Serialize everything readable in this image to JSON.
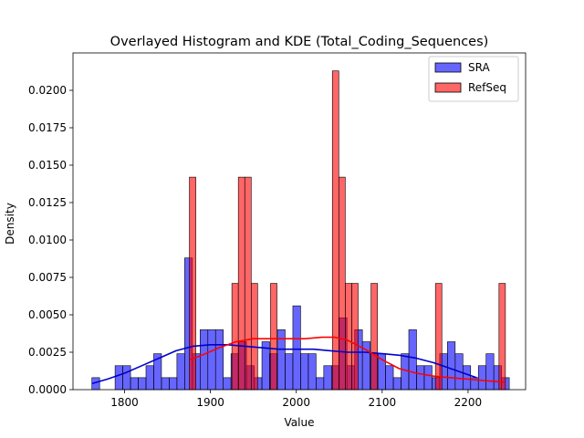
{
  "chart_data": {
    "type": "bar",
    "title": "Overlayed Histogram and KDE (Total_Coding_Sequences)",
    "xlabel": "Value",
    "ylabel": "Density",
    "xlim": [
      1740,
      2267
    ],
    "ylim": [
      0,
      0.0225
    ],
    "xticks": [
      1800,
      1900,
      2000,
      2100,
      2200
    ],
    "yticks": [
      0.0,
      0.0025,
      0.005,
      0.0075,
      0.01,
      0.0125,
      0.015,
      0.0175,
      0.02
    ],
    "ytick_labels": [
      "0.0000",
      "0.0025",
      "0.0050",
      "0.0075",
      "0.0100",
      "0.0125",
      "0.0150",
      "0.0175",
      "0.0200"
    ],
    "grid": false,
    "legend_position": "top-right",
    "series": [
      {
        "name": "SRA",
        "kind": "histogram",
        "color": "#0000ff",
        "bin_start": 1762,
        "bin_width": 9.0,
        "values": [
          0.0008,
          0.0,
          0.0,
          0.0016,
          0.0016,
          0.0008,
          0.0008,
          0.0016,
          0.0024,
          0.0008,
          0.0008,
          0.0024,
          0.0088,
          0.0024,
          0.004,
          0.004,
          0.004,
          0.0008,
          0.0024,
          0.0032,
          0.0016,
          0.0008,
          0.0032,
          0.0024,
          0.004,
          0.0024,
          0.0056,
          0.0024,
          0.0024,
          0.0008,
          0.0016,
          0.0016,
          0.0048,
          0.0016,
          0.004,
          0.0032,
          0.0024,
          0.0024,
          0.0016,
          0.0008,
          0.0024,
          0.004,
          0.0016,
          0.0016,
          0.0008,
          0.0024,
          0.0032,
          0.0024,
          0.0016,
          0.0008,
          0.0016,
          0.0024,
          0.0016,
          0.0008
        ]
      },
      {
        "name": "RefSeq",
        "kind": "histogram",
        "color": "#ff0000",
        "bars": [
          {
            "x0": 1875.5,
            "x1": 1883.0,
            "value": 0.0142
          },
          {
            "x0": 1925.0,
            "x1": 1932.5,
            "value": 0.0071
          },
          {
            "x0": 1932.5,
            "x1": 1940.0,
            "value": 0.0142
          },
          {
            "x0": 1940.0,
            "x1": 1947.5,
            "value": 0.0142
          },
          {
            "x0": 1947.5,
            "x1": 1955.0,
            "value": 0.0071
          },
          {
            "x0": 1970.0,
            "x1": 1977.5,
            "value": 0.0071
          },
          {
            "x0": 2042.0,
            "x1": 2049.5,
            "value": 0.0213
          },
          {
            "x0": 2049.5,
            "x1": 2057.0,
            "value": 0.0142
          },
          {
            "x0": 2057.0,
            "x1": 2064.5,
            "value": 0.0071
          },
          {
            "x0": 2064.5,
            "x1": 2072.0,
            "value": 0.0071
          },
          {
            "x0": 2087.0,
            "x1": 2094.5,
            "value": 0.0071
          },
          {
            "x0": 2162.0,
            "x1": 2169.5,
            "value": 0.0071
          },
          {
            "x0": 2236.0,
            "x1": 2243.5,
            "value": 0.0071
          }
        ]
      }
    ],
    "kde": [
      {
        "name": "SRA",
        "color": "#0000cc",
        "x": [
          1762,
          1780,
          1800,
          1820,
          1840,
          1860,
          1880,
          1900,
          1920,
          1940,
          1960,
          1980,
          2000,
          2020,
          2040,
          2060,
          2080,
          2100,
          2120,
          2140,
          2160,
          2180,
          2200,
          2210
        ],
        "y": [
          0.0004,
          0.0007,
          0.0011,
          0.0016,
          0.0021,
          0.0026,
          0.0029,
          0.003,
          0.003,
          0.0029,
          0.0028,
          0.0027,
          0.0027,
          0.0027,
          0.0026,
          0.0025,
          0.0025,
          0.0024,
          0.0023,
          0.0021,
          0.0018,
          0.0014,
          0.001,
          0.0008
        ]
      },
      {
        "name": "RefSeq",
        "color": "#ff0000",
        "x": [
          1876,
          1890,
          1910,
          1930,
          1950,
          1970,
          1990,
          2010,
          2030,
          2045,
          2060,
          2080,
          2100,
          2120,
          2140,
          2160,
          2180,
          2200,
          2220,
          2242
        ],
        "y": [
          0.002,
          0.0023,
          0.0028,
          0.0032,
          0.0034,
          0.0034,
          0.0034,
          0.0034,
          0.0035,
          0.0035,
          0.0033,
          0.0027,
          0.002,
          0.0014,
          0.0011,
          0.0009,
          0.0008,
          0.0007,
          0.0006,
          0.0005
        ]
      }
    ]
  }
}
